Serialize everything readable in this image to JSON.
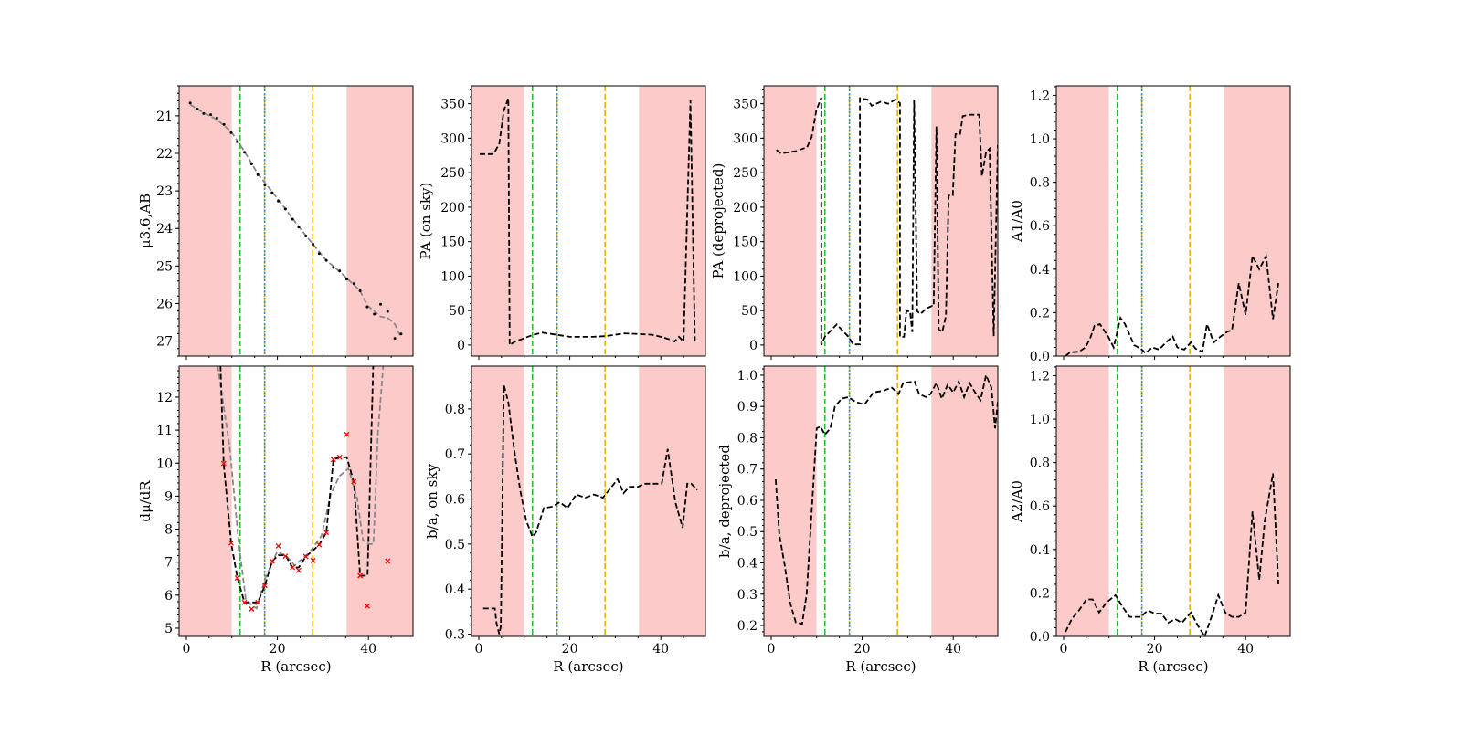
{
  "chart_data": {
    "type": "line",
    "figure": "8-panel radial profile plot",
    "shared_x": {
      "label": "R (arcsec)",
      "lim": [
        -1.6,
        49.8
      ],
      "ticks": [
        0,
        20,
        40
      ]
    },
    "shaded_regions": [
      [
        -1.6,
        9.97
      ],
      [
        35.2,
        49.8
      ]
    ],
    "shade_color": "#fdcaca",
    "vlines": [
      {
        "x": 11.8,
        "color": "#22c322",
        "style": "dashed"
      },
      {
        "x": 17.2,
        "color": "#e8b400",
        "style": "dashed"
      },
      {
        "x": 17.2,
        "color": "#2c8fe8",
        "style": "dotted"
      },
      {
        "x": 27.75,
        "color": "#e8b400",
        "style": "dashed"
      }
    ],
    "panels": [
      {
        "id": "mu",
        "ylabel": "μ3.6,AB",
        "ylim": [
          27.4,
          20.2
        ],
        "yticks": [
          21,
          22,
          23,
          24,
          25,
          26,
          27
        ],
        "xticklabels": false,
        "series": [
          {
            "name": "smooth",
            "color": "#888888",
            "style": "dashed",
            "x": [
              0.85,
              3.78,
              6.71,
              9.84,
              12.77,
              15.7,
              18.83,
              21.76,
              24.69,
              27.82,
              30.75,
              33.68,
              36.81,
              38.18,
              39.74,
              41.3,
              42.67,
              44.23,
              45.8,
              47.17
            ],
            "y": [
              20.7,
              20.92,
              21.1,
              21.42,
              21.95,
              22.55,
              23.02,
              23.48,
              23.95,
              24.42,
              24.85,
              25.15,
              25.5,
              25.66,
              26.05,
              26.2,
              26.35,
              26.38,
              26.55,
              26.9
            ]
          },
          {
            "name": "points",
            "color": "#000000",
            "style": "dots",
            "x": [
              0.85,
              2.41,
              3.78,
              5.34,
              6.71,
              8.27,
              9.84,
              11.2,
              12.77,
              14.33,
              15.7,
              17.26,
              18.83,
              20.2,
              21.76,
              23.32,
              24.69,
              26.25,
              27.82,
              29.19,
              30.75,
              32.31,
              33.68,
              35.24,
              36.81,
              38.18,
              39.74,
              41.3,
              42.67,
              44.23,
              45.8,
              47.17
            ],
            "y": [
              20.66,
              20.82,
              20.94,
              20.97,
              21.06,
              21.23,
              21.45,
              21.69,
              21.97,
              22.28,
              22.57,
              22.84,
              23.05,
              23.27,
              23.48,
              23.75,
              23.96,
              24.2,
              24.42,
              24.67,
              24.85,
              25.04,
              25.13,
              25.35,
              25.47,
              25.66,
              26.09,
              26.28,
              26.02,
              26.21,
              26.93,
              26.81
            ]
          }
        ]
      },
      {
        "id": "pa-sky",
        "ylabel": "PA (on sky)",
        "ylim": [
          -16,
          376
        ],
        "yticks": [
          0,
          50,
          100,
          150,
          200,
          250,
          300,
          350
        ],
        "xticklabels": false,
        "series": [
          {
            "name": "pa",
            "color": "#000000",
            "style": "dashed",
            "x": [
              0.2,
              1,
              2,
              3,
              3.5,
              4.5,
              5.5,
              6.5,
              6.8,
              8,
              10,
              12,
              14,
              16,
              18,
              20,
              25,
              28,
              30,
              32,
              35,
              38,
              40,
              42,
              43,
              44,
              45,
              46.5,
              47.5
            ],
            "y": [
              277,
              277,
              277,
              277,
              280,
              292,
              340,
              358,
              0,
              5,
              10,
              15,
              18,
              16,
              14,
              12,
              12,
              13,
              15,
              17,
              16,
              15,
              12,
              8,
              5,
              12,
              5,
              355,
              5
            ]
          }
        ]
      },
      {
        "id": "pa-deproj",
        "ylabel": "PA (deprojected)",
        "ylim": [
          -16,
          376
        ],
        "yticks": [
          0,
          50,
          100,
          150,
          200,
          250,
          300,
          350
        ],
        "xticklabels": false,
        "series": [
          {
            "name": "pa",
            "color": "#000000",
            "style": "dashed",
            "x": [
              1.15,
              2.1,
              5.35,
              7.9,
              8.9,
              9.9,
              11,
              11,
              11.8,
              14.4,
              17,
              18,
              19.5,
              19.5,
              21.2,
              22.1,
              24.1,
              25.7,
              27.3,
              28.3,
              28.3,
              29.2,
              29.7,
              30.5,
              31,
              31.4,
              32.1,
              32.8,
              34.1,
              35.4,
              35.7,
              36.3,
              36.8,
              37.6,
              38.4,
              39,
              39.9,
              40.5,
              41.5,
              42.1,
              43.4,
              45.7,
              46.3,
              47.2,
              48,
              48.9,
              49.8
            ],
            "y": [
              283,
              278,
              281,
              287,
              302,
              340,
              359,
              0,
              12,
              30,
              12,
              1,
              1,
              358,
              356,
              347,
              353,
              350,
              356,
              351,
              12,
              12,
              49,
              49,
              19,
              356,
              49,
              45,
              53,
              57,
              57,
              317,
              23,
              19,
              42,
              217,
              217,
              306,
              306,
              332,
              334,
              334,
              245,
              280,
              285,
              13,
              290
            ]
          }
        ]
      },
      {
        "id": "a1",
        "ylabel": "A1/A0",
        "ylim": [
          0,
          1.244
        ],
        "yticks": [
          0.0,
          0.2,
          0.4,
          0.6,
          0.8,
          1.0,
          1.2
        ],
        "xticklabels": false,
        "series": [
          {
            "name": "a1",
            "color": "#000000",
            "style": "dashed",
            "x": [
              0.4,
              1.4,
              3.4,
              4.8,
              5.8,
              6.8,
              8,
              9.8,
              11,
              12.5,
              13.5,
              15.5,
              17,
              18,
              19.5,
              21,
              22.5,
              24,
              25,
              26.5,
              28,
              29,
              30.5,
              31.5,
              33,
              34.5,
              36,
              37,
              38.5,
              40,
              41.5,
              43,
              44.5,
              46,
              47.2
            ],
            "y": [
              0,
              0.017,
              0.02,
              0.04,
              0.08,
              0.14,
              0.147,
              0.09,
              0.04,
              0.176,
              0.147,
              0.05,
              0.034,
              0.013,
              0.04,
              0.03,
              0.063,
              0.09,
              0.04,
              0.03,
              0.063,
              0.034,
              0.02,
              0.147,
              0.063,
              0.09,
              0.113,
              0.118,
              0.336,
              0.19,
              0.46,
              0.4,
              0.46,
              0.17,
              0.336
            ]
          }
        ]
      },
      {
        "id": "dmu",
        "ylabel": "dμ/dR",
        "ylim": [
          4.75,
          12.94
        ],
        "yticks": [
          5,
          6,
          7,
          8,
          9,
          10,
          11,
          12
        ],
        "xticklabels": true,
        "series": [
          {
            "name": "smooth",
            "color": "#888888",
            "style": "dashed",
            "x": [
              6.6,
              9.5,
              11.5,
              13.1,
              15.4,
              17.3,
              19.9,
              21.9,
              23.8,
              27.1,
              29.7,
              31.7,
              33.6,
              35.6,
              37.5,
              38.8,
              40.1,
              41.1,
              42.1,
              43.4
            ],
            "y": [
              13.2,
              10.5,
              7.6,
              5.83,
              5.6,
              6.5,
              7.3,
              7.2,
              6.9,
              7.3,
              7.8,
              9.05,
              9.6,
              9.84,
              8.96,
              7.67,
              7.55,
              7.55,
              10.9,
              13.2
            ]
          },
          {
            "name": "derivative",
            "color": "#000000",
            "style": "dashed",
            "x": [
              7.43,
              8.2,
              9.84,
              11.2,
              12.77,
              15.7,
              17.26,
              18.83,
              20.2,
              21.76,
              23.32,
              24.69,
              26.25,
              27.82,
              29.19,
              30.75,
              32.31,
              33.68,
              35.24,
              36.81,
              38.18,
              39.8,
              41.1
            ],
            "y": [
              13.2,
              9.97,
              7.58,
              6.52,
              5.78,
              5.78,
              6.29,
              7.03,
              7.21,
              7.21,
              6.84,
              6.84,
              7.17,
              7.35,
              7.53,
              7.9,
              10.11,
              10.18,
              10.18,
              9.42,
              6.59,
              6.59,
              13.2
            ]
          },
          {
            "name": "raw",
            "color": "#ff0000",
            "style": "x",
            "x": [
              8.2,
              9.84,
              11.2,
              12.77,
              14.33,
              15.7,
              17.26,
              18.83,
              20.2,
              21.76,
              23.32,
              24.69,
              26.25,
              27.82,
              29.19,
              30.75,
              32.31,
              33.68,
              35.24,
              36.81,
              38.18,
              39.74,
              44.23
            ],
            "y": [
              9.99,
              7.58,
              6.52,
              5.78,
              5.58,
              5.78,
              6.29,
              7.03,
              7.49,
              7.18,
              6.84,
              6.75,
              7.17,
              7.05,
              7.53,
              7.9,
              10.11,
              10.18,
              10.87,
              9.44,
              6.59,
              5.67,
              7.03
            ]
          }
        ]
      },
      {
        "id": "ba-sky",
        "ylabel": "b/a, on sky",
        "ylim": [
          0.295,
          0.895
        ],
        "yticks": [
          0.3,
          0.4,
          0.5,
          0.6,
          0.7,
          0.8
        ],
        "xticklabels": true,
        "series": [
          {
            "name": "ba",
            "color": "#000000",
            "style": "dashed",
            "x": [
              0.96,
              3.55,
              3.9,
              4.5,
              4.85,
              5.5,
              6.5,
              7.8,
              9.1,
              10.4,
              11.8,
              12.6,
              14.3,
              16.2,
              17.8,
              19.5,
              21.4,
              23.4,
              25.3,
              27.3,
              29.2,
              30.5,
              31.8,
              33.1,
              35,
              36.3,
              40.2,
              41.5,
              43.2,
              44.8,
              45.8,
              46.7,
              48
            ],
            "y": [
              0.357,
              0.357,
              0.324,
              0.3,
              0.317,
              0.853,
              0.815,
              0.708,
              0.62,
              0.553,
              0.516,
              0.526,
              0.58,
              0.583,
              0.593,
              0.58,
              0.61,
              0.603,
              0.61,
              0.603,
              0.627,
              0.644,
              0.613,
              0.627,
              0.627,
              0.634,
              0.634,
              0.711,
              0.593,
              0.536,
              0.634,
              0.634,
              0.62
            ]
          }
        ]
      },
      {
        "id": "ba-deproj",
        "ylabel": "b/a, deprojected",
        "ylim": [
          0.165,
          1.029
        ],
        "yticks": [
          0.2,
          0.3,
          0.4,
          0.5,
          0.6,
          0.7,
          0.8,
          0.9,
          1.0
        ],
        "xticklabels": true,
        "series": [
          {
            "name": "ba",
            "color": "#000000",
            "style": "dashed",
            "x": [
              1,
              1.8,
              3,
              4.2,
              5.4,
              6.8,
              7.8,
              9,
              10,
              10.8,
              11.8,
              13,
              14,
              15.5,
              17,
              18.5,
              20.5,
              22.5,
              24.5,
              26.5,
              28,
              29,
              31.5,
              32.5,
              34,
              35,
              36.3,
              37.5,
              38.8,
              40,
              41.2,
              42.4,
              43.6,
              44.8,
              46,
              47.2,
              48.4,
              49.2,
              49.8
            ],
            "y": [
              0.667,
              0.49,
              0.39,
              0.27,
              0.21,
              0.205,
              0.3,
              0.59,
              0.83,
              0.836,
              0.81,
              0.83,
              0.9,
              0.925,
              0.93,
              0.915,
              0.906,
              0.945,
              0.95,
              0.96,
              0.94,
              0.975,
              0.98,
              0.94,
              0.93,
              0.94,
              0.975,
              0.925,
              0.97,
              0.945,
              0.98,
              0.93,
              0.975,
              0.945,
              0.92,
              1.0,
              0.96,
              0.83,
              0.915
            ]
          }
        ]
      },
      {
        "id": "a2",
        "ylabel": "A2/A0",
        "ylim": [
          0,
          1.244
        ],
        "yticks": [
          0.0,
          0.2,
          0.4,
          0.6,
          0.8,
          1.0,
          1.2
        ],
        "xticklabels": true,
        "series": [
          {
            "name": "a2",
            "color": "#000000",
            "style": "dashed",
            "x": [
              0.4,
              1.8,
              3.4,
              5,
              6.4,
              7.8,
              9.4,
              11.4,
              13,
              14.5,
              17,
              18.5,
              20,
              21.5,
              23,
              24.5,
              26,
              28,
              29.5,
              31,
              32.5,
              34,
              35.5,
              37,
              38.5,
              40,
              41.5,
              43,
              44.2,
              46,
              47.2
            ],
            "y": [
              0.02,
              0.08,
              0.12,
              0.17,
              0.17,
              0.11,
              0.155,
              0.19,
              0.135,
              0.09,
              0.09,
              0.12,
              0.105,
              0.105,
              0.063,
              0.08,
              0.063,
              0.11,
              0.05,
              0,
              0.09,
              0.19,
              0.11,
              0.09,
              0.09,
              0.11,
              0.575,
              0.26,
              0.53,
              0.75,
              0.24
            ]
          }
        ]
      }
    ]
  }
}
